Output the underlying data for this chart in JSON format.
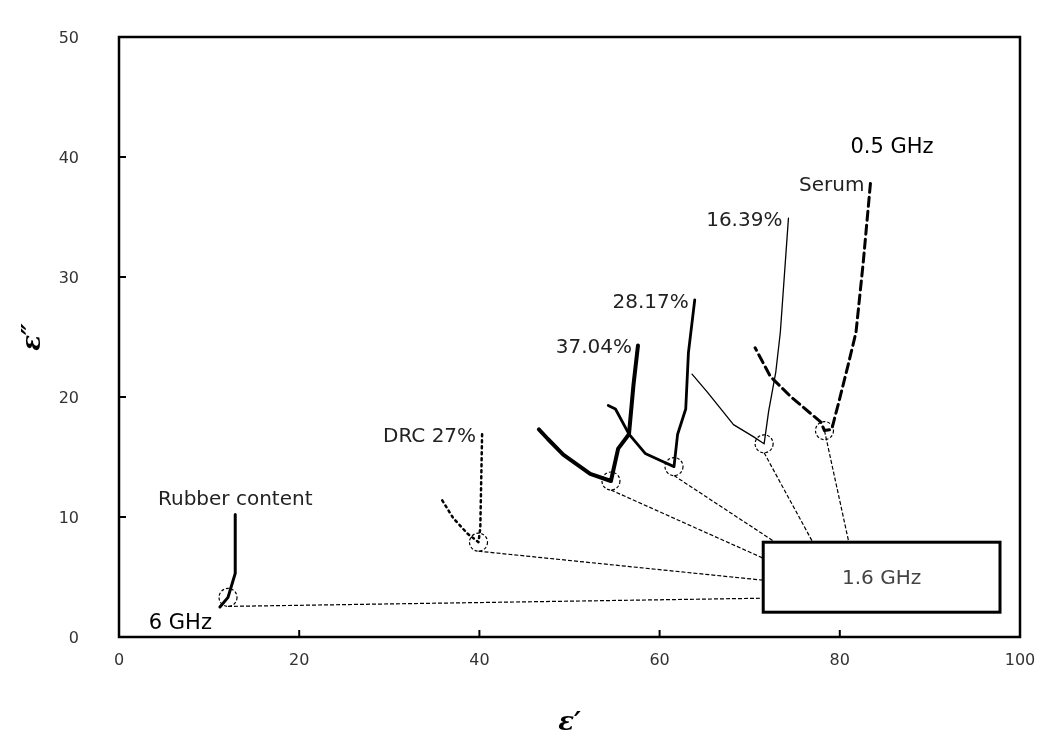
{
  "chart_data": {
    "type": "line",
    "xlabel": "ε′",
    "ylabel": "ε″",
    "xlim": [
      0,
      100
    ],
    "xticks": [
      0,
      20,
      40,
      60,
      80,
      100
    ],
    "ylim": [
      0,
      50
    ],
    "yticks": [
      0,
      10,
      20,
      30,
      40,
      50
    ],
    "grid": false,
    "annotations": [
      {
        "text": "0.5 GHz",
        "x": 83.4,
        "y": 37.8
      },
      {
        "text": "6 GHz",
        "x": 11.2,
        "y": 2.5
      },
      {
        "text": "1.6 GHz",
        "x": 78.3,
        "y": 17.2
      }
    ],
    "series": [
      {
        "name": "Serum",
        "color": "#000000",
        "line_style": "dashed",
        "x": [
          83.4,
          82.6,
          81.8,
          81,
          79.9,
          79.1,
          78.3,
          77.9,
          74.6,
          72.3,
          70.6
        ],
        "values": [
          37.8,
          31.2,
          25.4,
          22.9,
          19.6,
          17.3,
          17.2,
          17.9,
          20,
          21.7,
          24.1
        ]
      },
      {
        "name": "16.39%",
        "color": "#000000",
        "line_style": "solid",
        "x": [
          74.3,
          73.4,
          72.9,
          72.1,
          71.6,
          70.4,
          68.2,
          65.3,
          63.6
        ],
        "values": [
          34.9,
          25.4,
          22.1,
          18.8,
          16.1,
          16.7,
          17.7,
          20.4,
          21.9
        ]
      },
      {
        "name": "28.17%",
        "color": "#000000",
        "line_style": "solid",
        "x": [
          63.9,
          63.2,
          62.9,
          62,
          61.6,
          60.4,
          58.4,
          56.6,
          55.1,
          54.3
        ],
        "values": [
          28.1,
          23.7,
          19,
          16.9,
          14.2,
          14.6,
          15.3,
          16.9,
          19,
          19.3
        ]
      },
      {
        "name": "37.04%",
        "color": "#000000",
        "line_style": "solid",
        "x": [
          57.6,
          57.1,
          56.6,
          55.4,
          54.6,
          52.3,
          49.3,
          47.6,
          46.6
        ],
        "values": [
          24.3,
          21,
          16.9,
          15.7,
          13,
          13.6,
          15.2,
          16.5,
          17.3
        ]
      },
      {
        "name": "DRC 27%",
        "color": "#000000",
        "line_style": "dotted",
        "x": [
          40.3,
          40.1,
          39.9,
          38.7,
          37.1,
          35.7
        ],
        "values": [
          16.9,
          9.1,
          7.9,
          8.6,
          9.9,
          11.6
        ]
      },
      {
        "name": "Rubber content",
        "color": "#000000",
        "line_style": "solid",
        "x": [
          12.9,
          12.9,
          12.9,
          12.1,
          11.2
        ],
        "values": [
          10.2,
          7.8,
          5.3,
          3.3,
          2.5
        ]
      },
      {
        "type": "scatter",
        "marker": "circle",
        "color": "#000000",
        "x": [
          78.3,
          71.6,
          61.6,
          54.6,
          39.9,
          12.1
        ],
        "values": [
          17.2,
          16.1,
          14.2,
          13,
          7.9,
          3.3
        ]
      }
    ]
  }
}
